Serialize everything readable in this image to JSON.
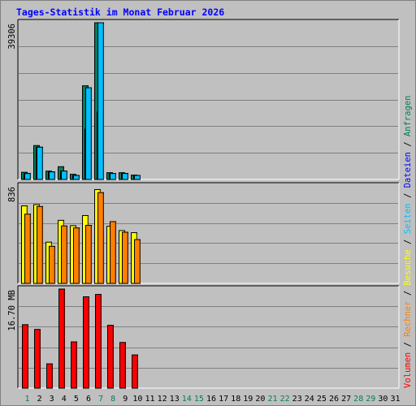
{
  "chart_data": {
    "type": "bar",
    "title": "Tages-Statistik im Monat Februar 2026",
    "days": [
      "1",
      "2",
      "3",
      "4",
      "5",
      "6",
      "7",
      "8",
      "9",
      "10",
      "11",
      "12",
      "13",
      "14",
      "15",
      "16",
      "17",
      "18",
      "19",
      "20",
      "21",
      "22",
      "23",
      "24",
      "25",
      "26",
      "27",
      "28",
      "29",
      "30",
      "31"
    ],
    "weekend_days": [
      "1",
      "7",
      "8",
      "14",
      "15",
      "21",
      "22",
      "28",
      "29"
    ],
    "panels": [
      {
        "name": "hits",
        "max_label": "39306",
        "ymax": 39306,
        "series": [
          {
            "name": "Anfragen",
            "color": "#00805c",
            "values": [
              1800,
              8500,
              2100,
              3200,
              1300,
              23500,
              39306,
              1700,
              1700,
              1100,
              0,
              0,
              0,
              0,
              0,
              0,
              0,
              0,
              0,
              0,
              0,
              0,
              0,
              0,
              0,
              0,
              0,
              0,
              0,
              0,
              0
            ]
          },
          {
            "name": "Dateien",
            "color": "#0000ff",
            "values": [
              1500,
              8100,
              1900,
              2100,
              1000,
              12600,
              16900,
              1400,
              1500,
              1000,
              0,
              0,
              0,
              0,
              0,
              0,
              0,
              0,
              0,
              0,
              0,
              0,
              0,
              0,
              0,
              0,
              0,
              0,
              0,
              0,
              0
            ]
          },
          {
            "name": "Seiten",
            "color": "#00c0ff",
            "values": [
              1500,
              8100,
              1900,
              2100,
              1000,
              23000,
              39306,
              1500,
              1500,
              1000,
              0,
              0,
              0,
              0,
              0,
              0,
              0,
              0,
              0,
              0,
              0,
              0,
              0,
              0,
              0,
              0,
              0,
              0,
              0,
              0,
              0
            ]
          }
        ]
      },
      {
        "name": "visits",
        "max_label": "836",
        "ymax": 836,
        "series": [
          {
            "name": "Besuche",
            "color": "#ffff00",
            "values": [
              665,
              676,
              354,
              541,
              495,
              582,
              805,
              490,
              453,
              435,
              0,
              0,
              0,
              0,
              0,
              0,
              0,
              0,
              0,
              0,
              0,
              0,
              0,
              0,
              0,
              0,
              0,
              0,
              0,
              0,
              0
            ]
          },
          {
            "name": "Rechner",
            "color": "#ff8000",
            "values": [
              594,
              660,
              318,
              493,
              476,
              498,
              779,
              530,
              439,
              376,
              0,
              0,
              0,
              0,
              0,
              0,
              0,
              0,
              0,
              0,
              0,
              0,
              0,
              0,
              0,
              0,
              0,
              0,
              0,
              0,
              0
            ]
          }
        ]
      },
      {
        "name": "volume",
        "max_label": "16.70 MB",
        "ymax": 16.7,
        "series": [
          {
            "name": "Volumen",
            "color": "#ff0000",
            "values": [
              10.7,
              9.9,
              4.1,
              16.7,
              7.8,
              15.4,
              15.8,
              10.6,
              7.7,
              5.6,
              0,
              0,
              0,
              0,
              0,
              0,
              0,
              0,
              0,
              0,
              0,
              0,
              0,
              0,
              0,
              0,
              0,
              0,
              0,
              0,
              0
            ]
          }
        ]
      }
    ],
    "legend": [
      {
        "label": "Volumen",
        "color": "#ff0000"
      },
      {
        "label": "Rechner",
        "color": "#ff8000"
      },
      {
        "label": "Besuche",
        "color": "#ffff00"
      },
      {
        "label": "Seiten",
        "color": "#00c0ff"
      },
      {
        "label": "Dateien",
        "color": "#0000ff"
      },
      {
        "label": "Anfragen",
        "color": "#00805c"
      }
    ],
    "legend_separator": "/",
    "grid": true,
    "legend_position": "right-vertical"
  }
}
